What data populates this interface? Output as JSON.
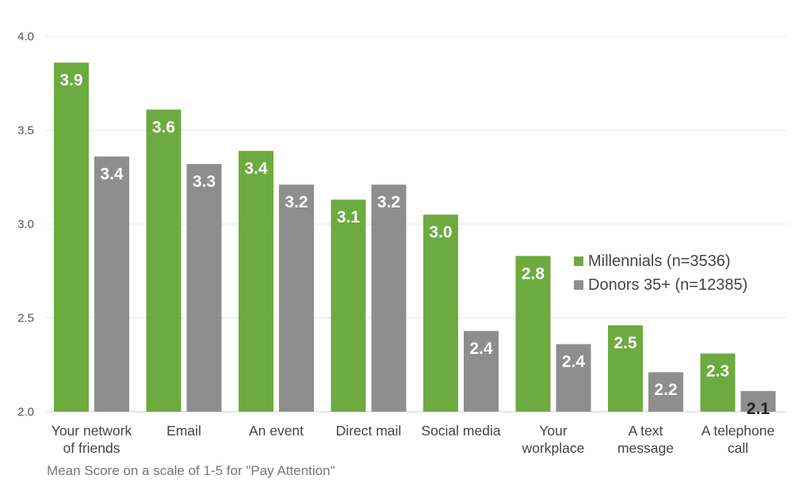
{
  "chart_data": {
    "type": "bar",
    "categories": [
      [
        "Your network",
        "of friends"
      ],
      [
        "Email"
      ],
      [
        "An event"
      ],
      [
        "Direct mail"
      ],
      [
        "Social media"
      ],
      [
        "Your",
        "workplace"
      ],
      [
        "A text",
        "message"
      ],
      [
        "A telephone",
        "call"
      ]
    ],
    "series": [
      {
        "name": "Millennials (n=3536)",
        "color": "#6daa3f",
        "values": [
          3.86,
          3.61,
          3.39,
          3.13,
          3.05,
          2.83,
          2.46,
          2.31
        ],
        "labels": [
          "3.9",
          "3.6",
          "3.4",
          "3.1",
          "3.0",
          "2.8",
          "2.5",
          "2.3"
        ],
        "label_colors": [
          "#ffffff",
          "#ffffff",
          "#ffffff",
          "#ffffff",
          "#ffffff",
          "#ffffff",
          "#ffffff",
          "#ffffff"
        ]
      },
      {
        "name": "Donors 35+ (n=12385)",
        "color": "#8e8e8e",
        "values": [
          3.36,
          3.32,
          3.21,
          3.21,
          2.43,
          2.36,
          2.21,
          2.11
        ],
        "labels": [
          "3.4",
          "3.3",
          "3.2",
          "3.2",
          "2.4",
          "2.4",
          "2.2",
          "2.1"
        ],
        "label_colors": [
          "#ffffff",
          "#ffffff",
          "#ffffff",
          "#ffffff",
          "#ffffff",
          "#ffffff",
          "#ffffff",
          "#222222"
        ]
      }
    ],
    "yticks": [
      "2.0",
      "2.5",
      "3.0",
      "3.5",
      "4.0"
    ],
    "ylim": [
      2.0,
      4.0
    ],
    "grid": true,
    "legend_position": "right",
    "caption": "Mean Score on a scale of 1-5 for \"Pay Attention\""
  }
}
